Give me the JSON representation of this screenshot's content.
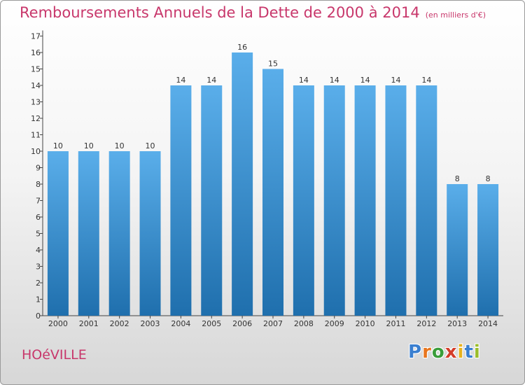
{
  "title": "Remboursements Annuels de la Dette de 2000 à 2014",
  "subtitle": "(en milliers d'€)",
  "commune": "HOéVILLE",
  "logo": {
    "letters": [
      "P",
      "r",
      "o",
      "x",
      "i",
      "t",
      "i"
    ],
    "colors": [
      "#3a7fd0",
      "#e8761e",
      "#3a9d3a",
      "#d43d2a",
      "#e8b21e",
      "#3a7fd0",
      "#9bbd2a"
    ]
  },
  "colors": {
    "bar_top": "#5aaeea",
    "bar_bottom": "#1f6fad",
    "axis": "#444444",
    "title": "#c8376b"
  },
  "chart_data": {
    "type": "bar",
    "title": "Remboursements Annuels de la Dette de 2000 à 2014",
    "xlabel": "",
    "ylabel": "",
    "categories": [
      "2000",
      "2001",
      "2002",
      "2003",
      "2004",
      "2005",
      "2006",
      "2007",
      "2008",
      "2009",
      "2010",
      "2011",
      "2012",
      "2013",
      "2014"
    ],
    "values": [
      10,
      10,
      10,
      10,
      14,
      14,
      16,
      15,
      14,
      14,
      14,
      14,
      14,
      8,
      8
    ],
    "ylim": [
      0,
      17
    ],
    "yticks": [
      0,
      1,
      2,
      3,
      4,
      5,
      6,
      7,
      8,
      9,
      10,
      11,
      12,
      13,
      14,
      15,
      16,
      17
    ]
  }
}
